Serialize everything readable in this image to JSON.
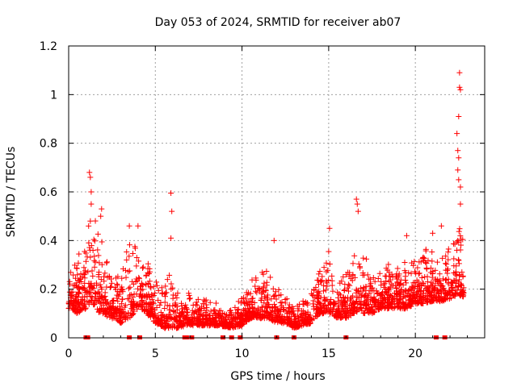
{
  "chart_data": {
    "type": "scatter",
    "title": "Day 053 of 2024, SRMTID for receiver ab07",
    "xlabel": "GPS time / hours",
    "ylabel": "SRMTID / TECUs",
    "xlim": [
      0,
      24
    ],
    "ylim": [
      0,
      1.2
    ],
    "xticks": [
      0,
      5,
      10,
      15,
      20
    ],
    "yticks": [
      0,
      0.2,
      0.4,
      0.6,
      0.8,
      1,
      1.2
    ],
    "xtick_labels": [
      "0",
      "5",
      "10",
      "15",
      "20"
    ],
    "ytick_labels": [
      "0",
      "0.2",
      "0.4",
      "0.6",
      "0.8",
      "1",
      "1.2"
    ],
    "grid": true,
    "marker": "+",
    "color": "#ff0000",
    "series": [
      {
        "name": "SRMTID",
        "envelope": [
          [
            0.0,
            0.12,
            0.26
          ],
          [
            0.5,
            0.1,
            0.35
          ],
          [
            1.0,
            0.12,
            0.4
          ],
          [
            1.3,
            0.15,
            0.62
          ],
          [
            1.8,
            0.1,
            0.45
          ],
          [
            2.5,
            0.08,
            0.3
          ],
          [
            3.0,
            0.06,
            0.28
          ],
          [
            3.5,
            0.08,
            0.45
          ],
          [
            4.0,
            0.12,
            0.42
          ],
          [
            4.5,
            0.1,
            0.35
          ],
          [
            5.0,
            0.06,
            0.25
          ],
          [
            5.5,
            0.04,
            0.2
          ],
          [
            5.9,
            0.04,
            0.42
          ],
          [
            6.3,
            0.04,
            0.18
          ],
          [
            6.8,
            0.05,
            0.22
          ],
          [
            7.5,
            0.05,
            0.18
          ],
          [
            8.5,
            0.05,
            0.15
          ],
          [
            9.5,
            0.04,
            0.12
          ],
          [
            10.0,
            0.05,
            0.18
          ],
          [
            10.5,
            0.08,
            0.25
          ],
          [
            11.0,
            0.08,
            0.28
          ],
          [
            11.5,
            0.08,
            0.32
          ],
          [
            12.0,
            0.06,
            0.22
          ],
          [
            12.5,
            0.06,
            0.18
          ],
          [
            13.0,
            0.04,
            0.15
          ],
          [
            13.5,
            0.05,
            0.18
          ],
          [
            14.0,
            0.06,
            0.2
          ],
          [
            14.5,
            0.1,
            0.32
          ],
          [
            15.0,
            0.1,
            0.36
          ],
          [
            15.5,
            0.08,
            0.25
          ],
          [
            16.0,
            0.08,
            0.28
          ],
          [
            16.5,
            0.1,
            0.36
          ],
          [
            17.0,
            0.1,
            0.38
          ],
          [
            17.5,
            0.1,
            0.25
          ],
          [
            18.0,
            0.12,
            0.28
          ],
          [
            18.5,
            0.12,
            0.32
          ],
          [
            19.0,
            0.12,
            0.3
          ],
          [
            19.5,
            0.12,
            0.35
          ],
          [
            20.0,
            0.14,
            0.32
          ],
          [
            20.5,
            0.14,
            0.36
          ],
          [
            21.0,
            0.15,
            0.4
          ],
          [
            21.5,
            0.15,
            0.38
          ],
          [
            22.0,
            0.16,
            0.38
          ],
          [
            22.5,
            0.18,
            0.5
          ],
          [
            22.8,
            0.16,
            0.4
          ]
        ],
        "peaks": [
          [
            1.2,
            0.68
          ],
          [
            1.25,
            0.66
          ],
          [
            1.3,
            0.6
          ],
          [
            1.3,
            0.55
          ],
          [
            1.25,
            0.48
          ],
          [
            1.9,
            0.53
          ],
          [
            1.85,
            0.5
          ],
          [
            3.5,
            0.46
          ],
          [
            4.0,
            0.46
          ],
          [
            5.9,
            0.595
          ],
          [
            5.95,
            0.52
          ],
          [
            5.9,
            0.41
          ],
          [
            16.6,
            0.57
          ],
          [
            16.65,
            0.55
          ],
          [
            16.7,
            0.52
          ],
          [
            22.4,
            0.84
          ],
          [
            22.45,
            0.77
          ],
          [
            22.5,
            0.74
          ],
          [
            22.55,
            1.09
          ],
          [
            22.55,
            1.03
          ],
          [
            22.6,
            1.02
          ],
          [
            22.5,
            0.91
          ],
          [
            22.45,
            0.69
          ],
          [
            22.5,
            0.65
          ],
          [
            22.6,
            0.62
          ],
          [
            22.6,
            0.55
          ],
          [
            21.5,
            0.46
          ],
          [
            21.0,
            0.43
          ],
          [
            19.5,
            0.42
          ],
          [
            15.05,
            0.45
          ],
          [
            11.85,
            0.4
          ]
        ],
        "zero_markers": [
          1.0,
          1.1,
          3.5,
          4.1,
          6.7,
          6.8,
          7.1,
          8.9,
          9.4,
          9.9,
          12.0,
          13.0,
          16.0,
          21.2,
          21.7
        ]
      }
    ]
  }
}
